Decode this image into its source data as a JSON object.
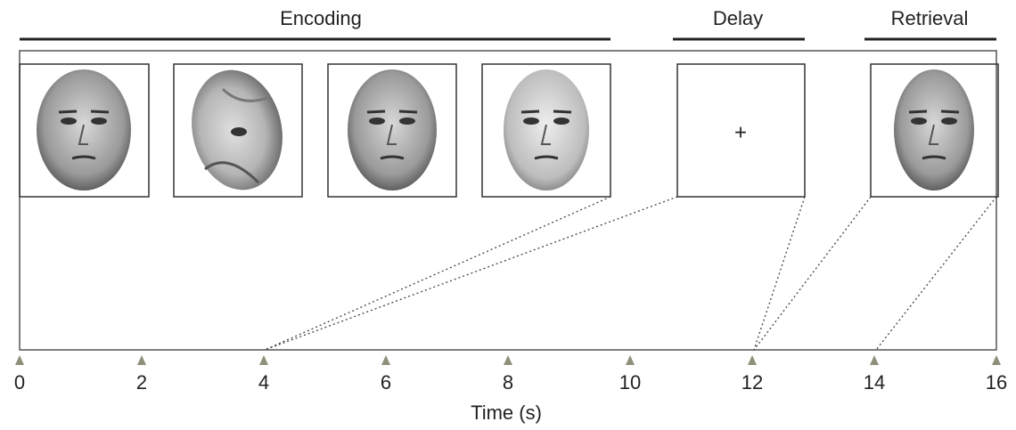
{
  "phases": [
    {
      "label": "Encoding"
    },
    {
      "label": "Delay"
    },
    {
      "label": "Retrieval"
    }
  ],
  "fixation_symbol": "+",
  "axis": {
    "label": "Time (s)",
    "ticks": [
      0,
      2,
      4,
      6,
      8,
      10,
      12,
      14,
      16
    ]
  }
}
